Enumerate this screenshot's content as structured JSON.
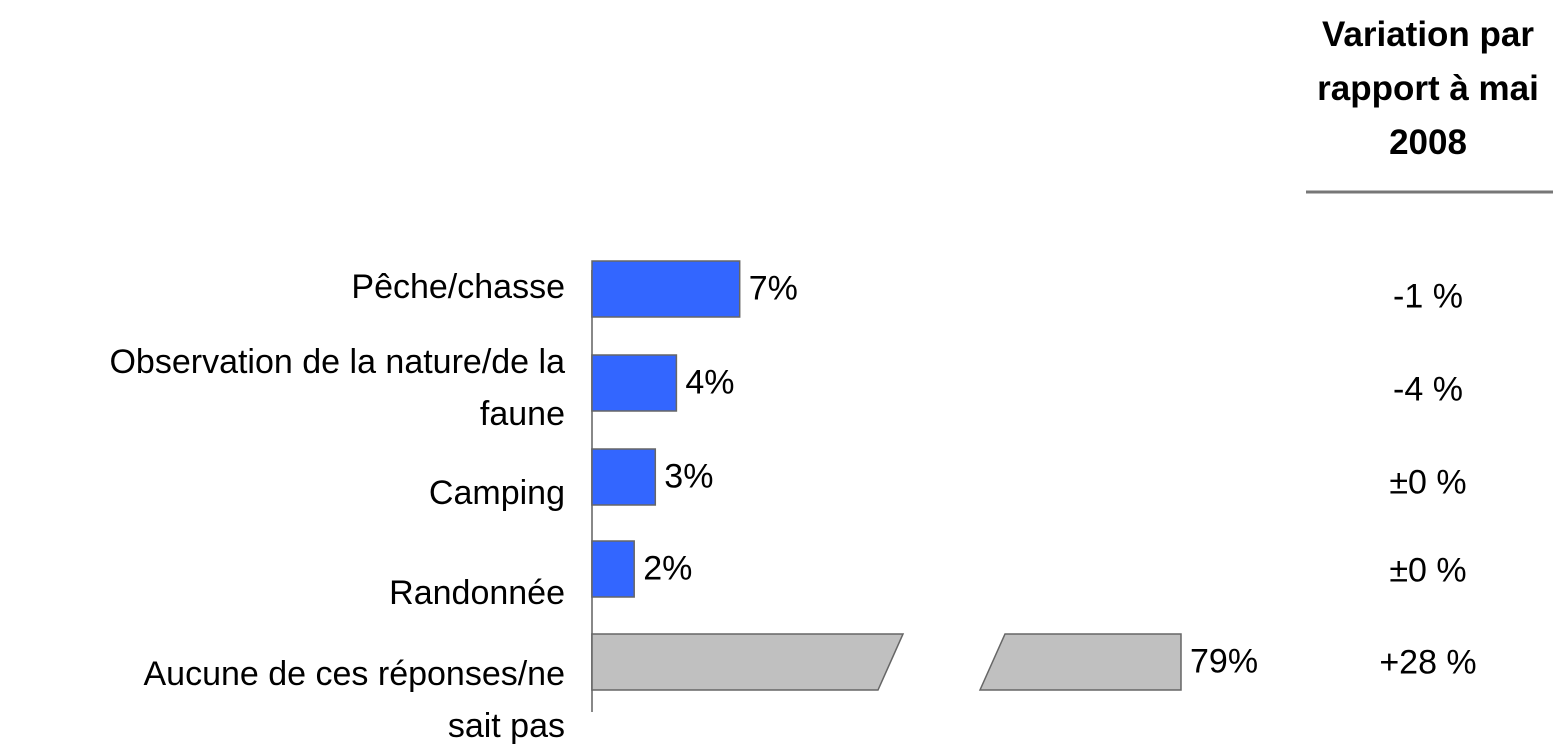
{
  "chart_data": {
    "type": "bar",
    "orientation": "horizontal",
    "categories": [
      "Pêche/chasse",
      "Observation de la nature/de la faune",
      "Camping",
      "Randonnée",
      "Aucune de ces réponses/ne sait pas"
    ],
    "values": [
      7,
      4,
      3,
      2,
      79
    ],
    "value_labels": [
      "7%",
      "4%",
      "3%",
      "2%",
      "79%"
    ],
    "colors": [
      "#3366ff",
      "#3366ff",
      "#3366ff",
      "#3366ff",
      "#c0c0c0"
    ],
    "variation_header": "Variation par rapport à mai 2008",
    "variation": [
      "-1 %",
      "-4 %",
      "±0 %",
      "±0 %",
      "+28 %"
    ]
  }
}
